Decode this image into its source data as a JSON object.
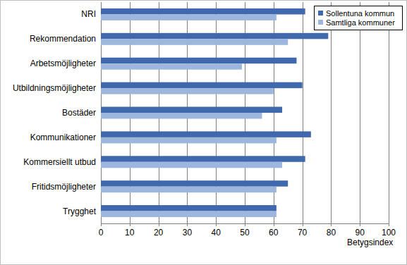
{
  "chart_data": {
    "type": "bar",
    "orientation": "horizontal",
    "categories": [
      "NRI",
      "Rekommendation",
      "Arbetsmöjligheter",
      "Utbildningsmöjligheter",
      "Bostäder",
      "Kommunikationer",
      "Kommersiellt utbud",
      "Fritidsmöjligheter",
      "Trygghet"
    ],
    "series": [
      {
        "name": "Sollentuna kommun",
        "color": "#4068ad",
        "values": [
          71,
          79,
          68,
          70,
          63,
          73,
          71,
          65,
          61
        ]
      },
      {
        "name": "Samtliga kommuner",
        "color": "#9db6dd",
        "values": [
          61,
          65,
          49,
          60,
          56,
          61,
          63,
          61,
          61
        ]
      }
    ],
    "x_label": "Betygsindex",
    "xlim": [
      0,
      100
    ],
    "xticks": [
      0,
      10,
      20,
      30,
      40,
      50,
      60,
      70,
      80,
      90,
      100
    ],
    "grid": true,
    "legend": "top-right"
  }
}
